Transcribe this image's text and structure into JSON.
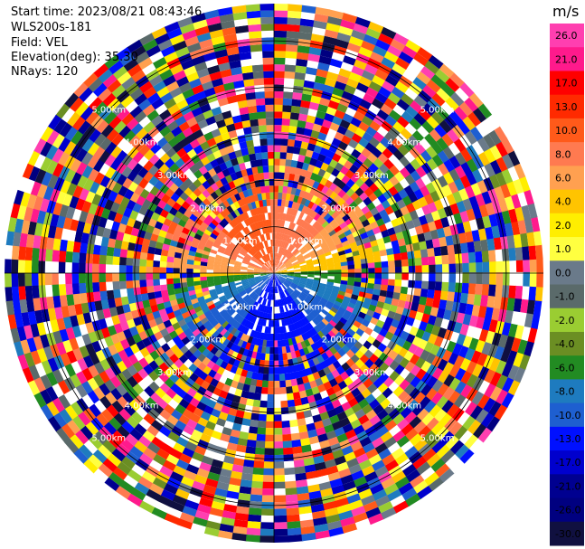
{
  "header": {
    "start_time": "Start time: 2023/08/21 08:43:46",
    "instrument": "WLS200s-181",
    "field": "Field: VEL",
    "elevation": "Elevation(deg): 35.30",
    "nrays": "NRays: 120"
  },
  "chart_data": {
    "type": "heatmap",
    "projection": "polar-ppi",
    "field": "VEL",
    "units": "m/s",
    "nrays": 120,
    "range_rings_km": [
      1,
      2,
      3,
      4,
      5
    ],
    "ring_labels": [
      "1.00km",
      "2.00km",
      "3.00km",
      "4.00km",
      "5.00km"
    ],
    "max_range_km": 5.8,
    "colorbar": {
      "unit_label": "m/s",
      "ticks": [
        "26.0",
        "21.0",
        "17.0",
        "13.0",
        "10.0",
        "8.0",
        "6.0",
        "4.0",
        "2.0",
        "1.0",
        "0.0",
        "-1.0",
        "-2.0",
        "-4.0",
        "-6.0",
        "-8.0",
        "-10.0",
        "-13.0",
        "-17.0",
        "-21.0",
        "-26.0",
        "-30.0"
      ],
      "colors": [
        "#ff3fb0",
        "#ff1a8c",
        "#ff0000",
        "#ff2a00",
        "#ff5a1a",
        "#ff7a50",
        "#ffa050",
        "#ffc400",
        "#ffee00",
        "#ffff40",
        "#6a7a8a",
        "#5a6a6a",
        "#9acd32",
        "#6b8e23",
        "#228b22",
        "#1e7bbf",
        "#1e5fd0",
        "#0010ff",
        "#0000cd",
        "#000090",
        "#000080",
        "#101040"
      ]
    }
  }
}
